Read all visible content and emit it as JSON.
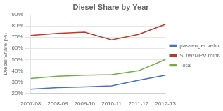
{
  "chart_data": {
    "type": "line",
    "title": "Diesel Share by Year",
    "ylabel": "Diesel Share (%)",
    "categories": [
      "2007-08",
      "2008-09",
      "2009-10",
      "2010-11",
      "2011-12",
      "2012-13"
    ],
    "series": [
      {
        "name": "passenger\nvehicles",
        "color": "#4472c4",
        "values": [
          23.5,
          25.0,
          25.5,
          26.5,
          31.5,
          36.0
        ]
      },
      {
        "name": "SUW/MPV\nminivan",
        "color": "#c0392b",
        "values": [
          71.5,
          73.5,
          74.5,
          67.5,
          72.5,
          81.5
        ]
      },
      {
        "name": "Total",
        "color": "#70ad47",
        "values": [
          33.0,
          35.0,
          36.0,
          36.5,
          40.0,
          50.0
        ]
      }
    ],
    "ylim": [
      20,
      90
    ],
    "yticks": [
      {
        "value": 20,
        "label": "20%"
      },
      {
        "value": 30,
        "label": "30%"
      },
      {
        "value": 40,
        "label": "40%"
      },
      {
        "value": 50,
        "label": "50%"
      },
      {
        "value": 60,
        "label": "60%"
      },
      {
        "value": 70,
        "label": "70%"
      },
      {
        "value": 80,
        "label": "80%"
      },
      {
        "value": 90,
        "label": "90%"
      }
    ],
    "grid": "y",
    "legend": "right"
  }
}
